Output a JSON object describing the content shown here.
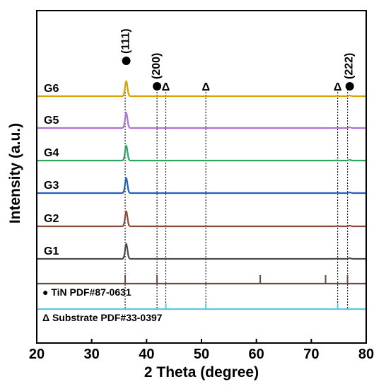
{
  "chart_data": {
    "type": "line",
    "xlabel": "2 Theta (degree)",
    "ylabel": "Intensity (a.u.)",
    "xlim": [
      20,
      80
    ],
    "x_ticks": [
      20,
      30,
      40,
      50,
      60,
      70,
      80
    ],
    "grid": false,
    "series": [
      {
        "name": "G1",
        "color": "#4d4d4d",
        "peaks": [
          [
            36.3,
            10
          ],
          [
            77.0,
            0.45
          ],
          [
            74.7,
            0.15
          ]
        ]
      },
      {
        "name": "G2",
        "color": "#8b4a3a",
        "peaks": [
          [
            36.3,
            10
          ],
          [
            77.0,
            0.45
          ],
          [
            74.7,
            0.15
          ]
        ]
      },
      {
        "name": "G3",
        "color": "#1f5fbf",
        "peaks": [
          [
            36.3,
            10
          ],
          [
            77.0,
            0.45
          ],
          [
            74.7,
            0.15
          ]
        ]
      },
      {
        "name": "G4",
        "color": "#2ea45f",
        "peaks": [
          [
            36.3,
            10
          ],
          [
            77.0,
            0.45
          ],
          [
            74.7,
            0.15
          ]
        ]
      },
      {
        "name": "G5",
        "color": "#b070d6",
        "peaks": [
          [
            36.3,
            10
          ],
          [
            77.0,
            0.45
          ],
          [
            74.7,
            0.15
          ]
        ]
      },
      {
        "name": "G6",
        "color": "#d9a000",
        "peaks": [
          [
            36.3,
            10
          ],
          [
            77.0,
            0.45
          ],
          [
            74.7,
            0.15
          ]
        ]
      }
    ],
    "reference_patterns": [
      {
        "name": "TiN PDF#87-0631",
        "marker": "●",
        "color": "#6b4a44",
        "lines": [
          36.1,
          41.9,
          60.7,
          72.6,
          76.6
        ]
      },
      {
        "name": "Substrate PDF#33-0397",
        "marker": "Δ",
        "color": "#5ac8e0",
        "lines": [
          43.5,
          50.8,
          74.8
        ]
      }
    ],
    "annotations": [
      {
        "text": "(111)",
        "x": 36.3,
        "marker": "●"
      },
      {
        "text": "(200)",
        "x": 41.9,
        "marker": "●"
      },
      {
        "text": "Δ",
        "x": 43.5
      },
      {
        "text": "Δ",
        "x": 50.8
      },
      {
        "text": "Δ",
        "x": 74.8
      },
      {
        "text": "(222)",
        "x": 77.0,
        "marker": "●"
      }
    ],
    "dotted_guides": [
      36.1,
      41.9,
      43.5,
      50.8,
      74.8,
      76.6
    ]
  }
}
